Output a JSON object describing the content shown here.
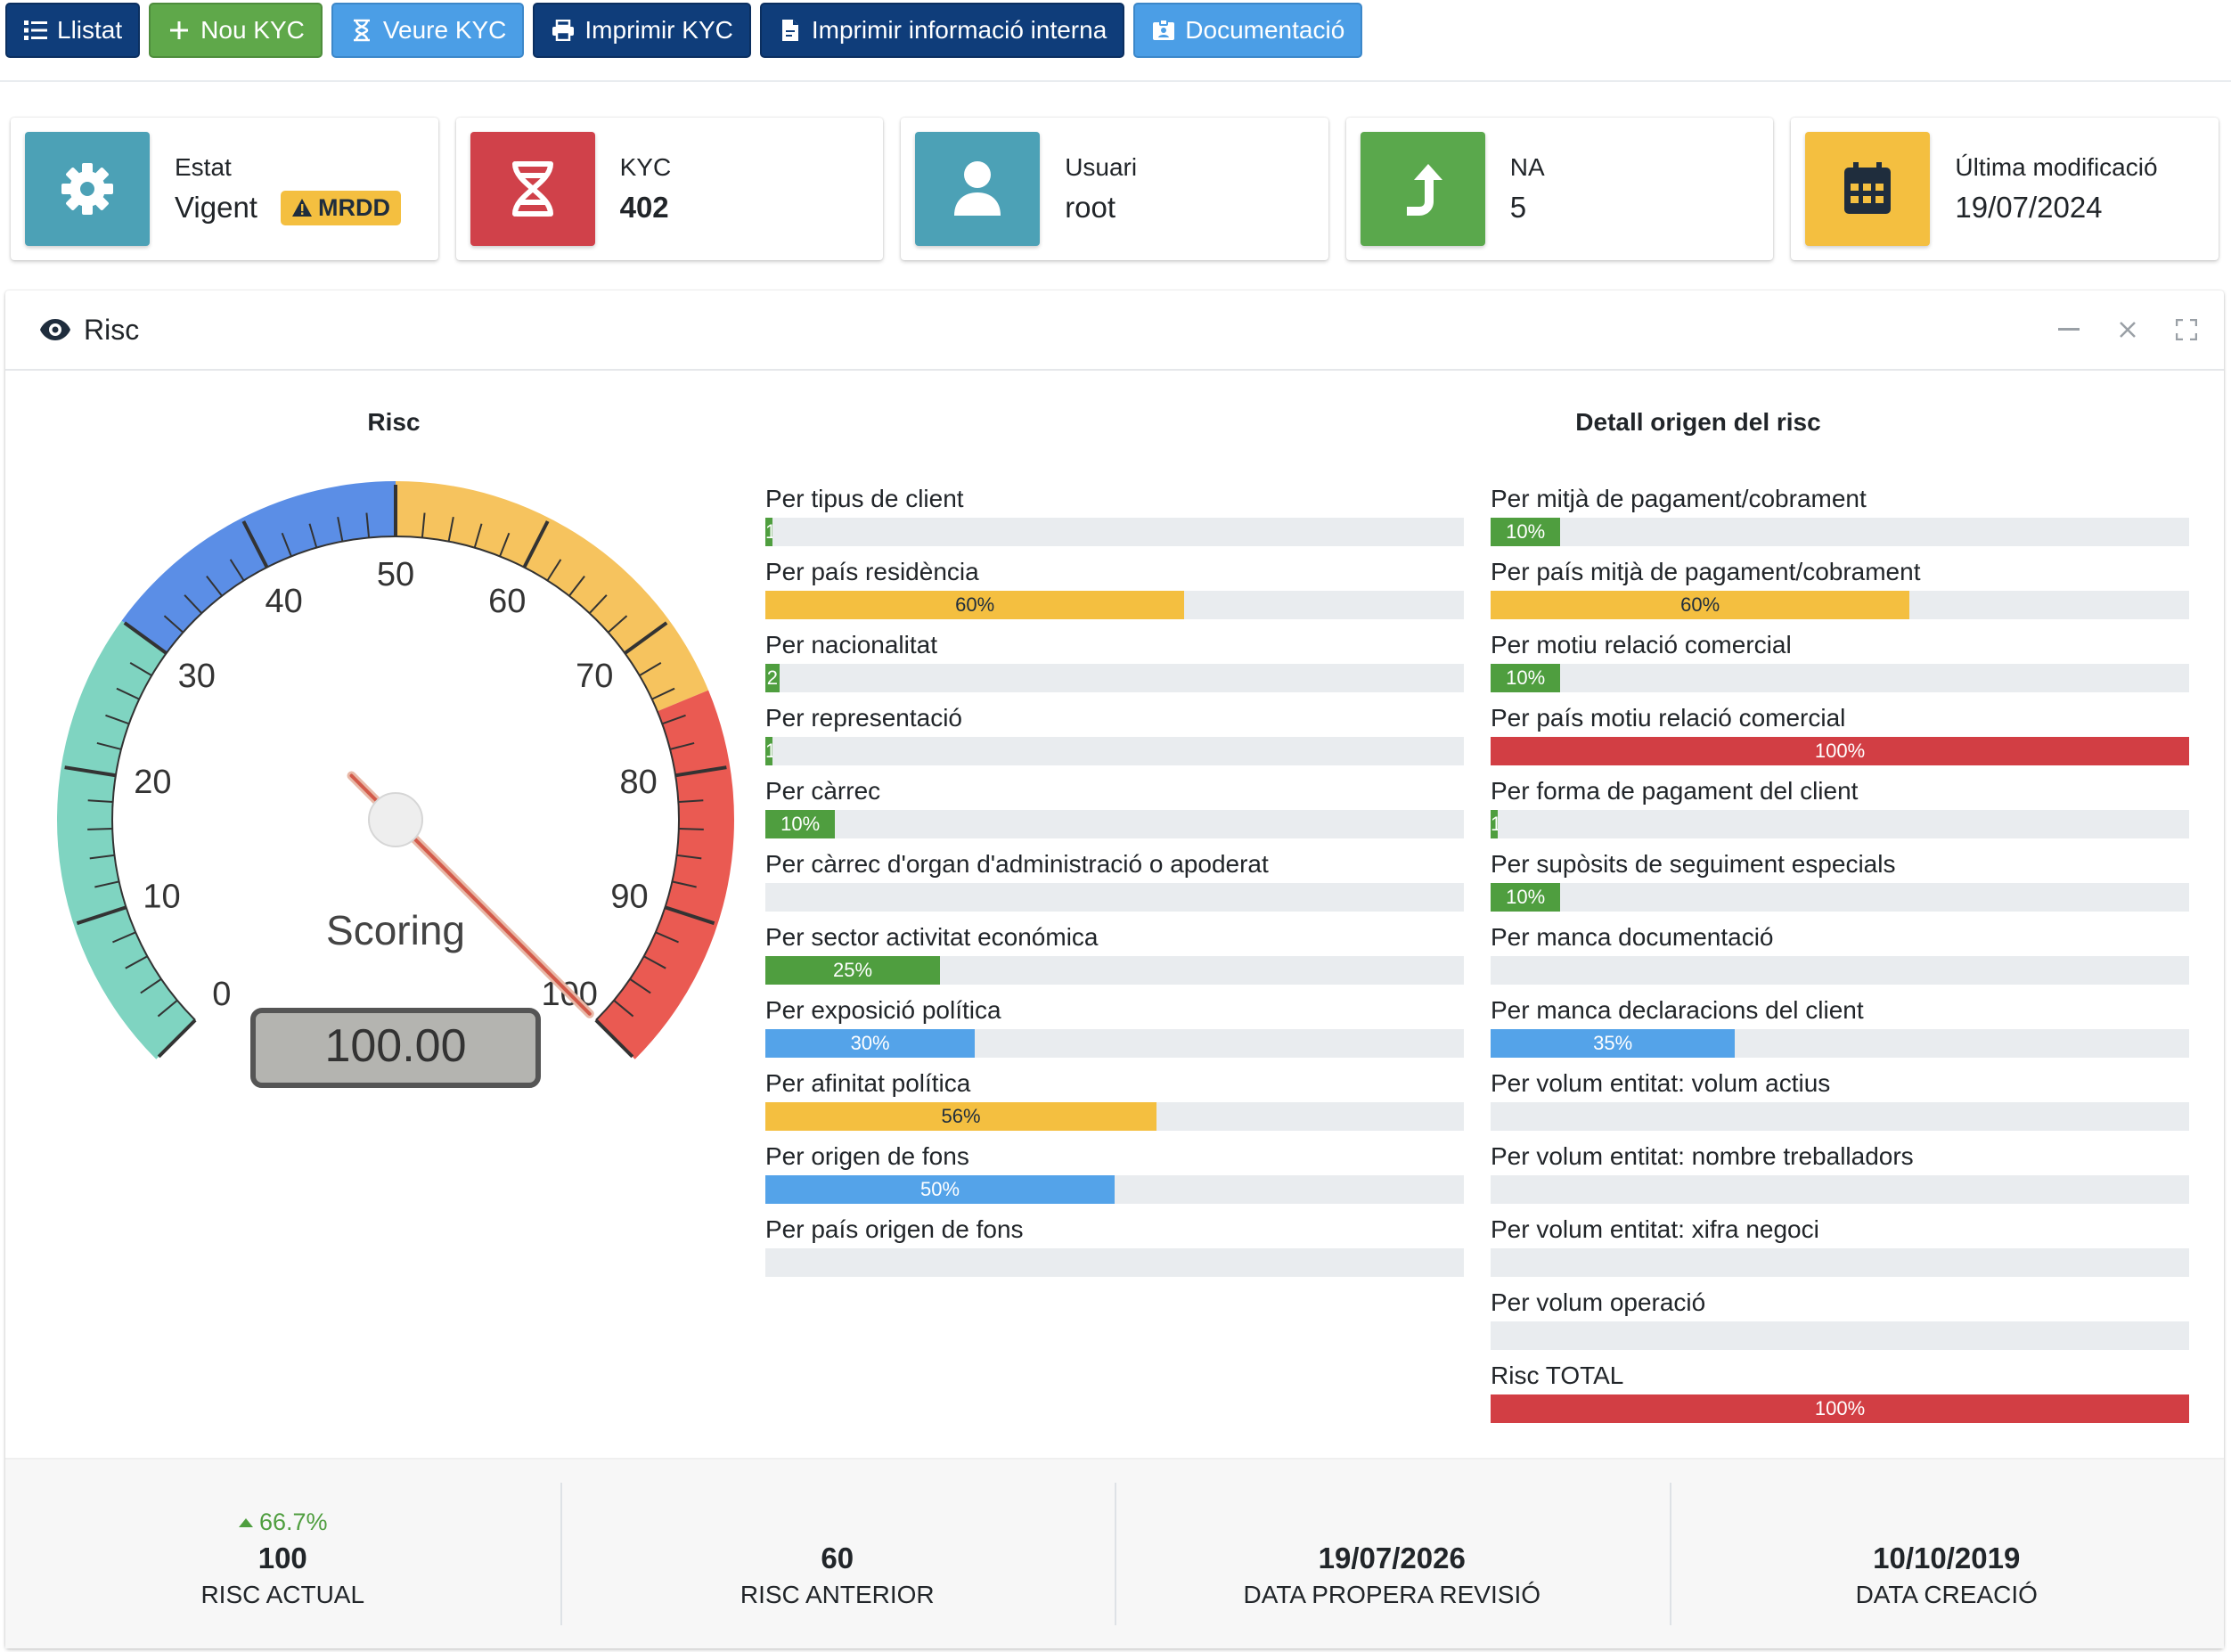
{
  "toolbar": {
    "buttons": [
      {
        "label": "Llistat",
        "icon": "list-icon"
      },
      {
        "label": "Nou KYC",
        "icon": "plus-icon"
      },
      {
        "label": "Veure KYC",
        "icon": "hourglass-icon"
      },
      {
        "label": "Imprimir KYC",
        "icon": "printer-icon"
      },
      {
        "label": "Imprimir informació interna",
        "icon": "file-pdf-icon"
      },
      {
        "label": "Documentació",
        "icon": "id-card-icon"
      }
    ]
  },
  "info_boxes": {
    "estat": {
      "label": "Estat",
      "value": "Vigent",
      "badge": "MRDD",
      "icon": "gear-icon",
      "color": "#4ca1b6"
    },
    "kyc": {
      "label": "KYC",
      "value": "402",
      "icon": "dna-icon",
      "color": "#d0414a"
    },
    "usuari": {
      "label": "Usuari",
      "value": "root",
      "icon": "user-icon",
      "color": "#4ca1b6"
    },
    "na": {
      "label": "NA",
      "value": "5",
      "icon": "arrow-turn-up-icon",
      "color": "#5aa84c"
    },
    "modificacio": {
      "label": "Última modificació",
      "value": "19/07/2024",
      "icon": "calendar-icon",
      "color": "#f4bf40"
    }
  },
  "card": {
    "title": "Risc",
    "gauge_title": "Risc",
    "detail_title": "Detall origen del risc"
  },
  "gauge": {
    "min": 0,
    "max": 100,
    "value": 100,
    "display_value": "100.00",
    "caption": "Scoring",
    "tick_labels": [
      "0",
      "10",
      "20",
      "30",
      "40",
      "50",
      "60",
      "70",
      "80",
      "90",
      "100"
    ],
    "bands": [
      {
        "from": 0,
        "to": 30,
        "color": "#7fd4c1"
      },
      {
        "from": 30,
        "to": 50,
        "color": "#5b8ee6"
      },
      {
        "from": 50,
        "to": 75,
        "color": "#f6c35e"
      },
      {
        "from": 75,
        "to": 100,
        "color": "#ea5a52"
      }
    ]
  },
  "risk_left": [
    {
      "label": "Per tipus de client",
      "value": 1,
      "text": "1",
      "color": "green"
    },
    {
      "label": "Per país residència",
      "value": 60,
      "text": "60%",
      "color": "yellow"
    },
    {
      "label": "Per nacionalitat",
      "value": 2,
      "text": "2",
      "color": "green"
    },
    {
      "label": "Per representació",
      "value": 1,
      "text": "1",
      "color": "green"
    },
    {
      "label": "Per càrrec",
      "value": 10,
      "text": "10%",
      "color": "green"
    },
    {
      "label": "Per càrrec d'organ d'administració o apoderat",
      "value": 0,
      "text": "",
      "color": "green"
    },
    {
      "label": "Per sector activitat económica",
      "value": 25,
      "text": "25%",
      "color": "green"
    },
    {
      "label": "Per exposició política",
      "value": 30,
      "text": "30%",
      "color": "blue"
    },
    {
      "label": "Per afinitat política",
      "value": 56,
      "text": "56%",
      "color": "yellow"
    },
    {
      "label": "Per origen de fons",
      "value": 50,
      "text": "50%",
      "color": "blue"
    },
    {
      "label": "Per país origen de fons",
      "value": 0,
      "text": "",
      "color": "green"
    }
  ],
  "risk_right": [
    {
      "label": "Per mitjà de pagament/cobrament",
      "value": 10,
      "text": "10%",
      "color": "green"
    },
    {
      "label": "Per país mitjà de pagament/cobrament",
      "value": 60,
      "text": "60%",
      "color": "yellow"
    },
    {
      "label": "Per motiu relació comercial",
      "value": 10,
      "text": "10%",
      "color": "green"
    },
    {
      "label": "Per país motiu relació comercial",
      "value": 100,
      "text": "100%",
      "color": "red"
    },
    {
      "label": "Per forma de pagament del client",
      "value": 1,
      "text": "1",
      "color": "green"
    },
    {
      "label": "Per supòsits de seguiment especials",
      "value": 10,
      "text": "10%",
      "color": "green"
    },
    {
      "label": "Per manca documentació",
      "value": 0,
      "text": "",
      "color": "green"
    },
    {
      "label": "Per manca declaracions del client",
      "value": 35,
      "text": "35%",
      "color": "blue"
    },
    {
      "label": "Per volum entitat: volum actius",
      "value": 0,
      "text": "",
      "color": "green"
    },
    {
      "label": "Per volum entitat: nombre treballadors",
      "value": 0,
      "text": "",
      "color": "green"
    },
    {
      "label": "Per volum entitat: xifra negoci",
      "value": 0,
      "text": "",
      "color": "green"
    },
    {
      "label": "Per volum operació",
      "value": 0,
      "text": "",
      "color": "green"
    },
    {
      "label": "Risc TOTAL",
      "value": 100,
      "text": "100%",
      "color": "red"
    }
  ],
  "footer": {
    "risc_actual": {
      "change": "66.7%",
      "value": "100",
      "label": "RISC ACTUAL"
    },
    "risc_anterior": {
      "value": "60",
      "label": "RISC ANTERIOR"
    },
    "propera_revisio": {
      "value": "19/07/2026",
      "label": "DATA PROPERA REVISIÓ"
    },
    "creacio": {
      "value": "10/10/2019",
      "label": "DATA CREACIÓ"
    }
  }
}
